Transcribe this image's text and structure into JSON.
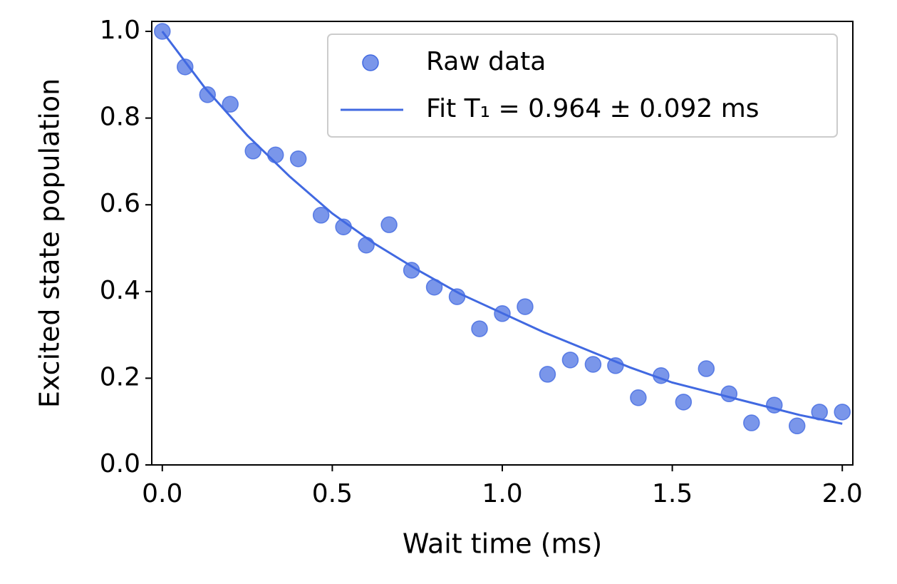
{
  "chart_data": {
    "type": "scatter",
    "xlabel": "Wait time (ms)",
    "ylabel": "Excited state population",
    "xlim": [
      -0.031,
      2.031
    ],
    "ylim": [
      0,
      1.023
    ],
    "xticks": [
      {
        "value": 0,
        "label": "0.0"
      },
      {
        "value": 0.5,
        "label": "0.5"
      },
      {
        "value": 1,
        "label": "1.0"
      },
      {
        "value": 1.5,
        "label": "1.5"
      },
      {
        "value": 2,
        "label": "2.0"
      }
    ],
    "yticks": [
      {
        "value": 0,
        "label": "0.0"
      },
      {
        "value": 0.2,
        "label": "0.2"
      },
      {
        "value": 0.4,
        "label": "0.4"
      },
      {
        "value": 0.6,
        "label": "0.6"
      },
      {
        "value": 0.8,
        "label": "0.8"
      },
      {
        "value": 1,
        "label": "1.0"
      }
    ],
    "legend": "upper right",
    "series": [
      {
        "name": "Raw data",
        "type": "scatter",
        "color": "#4169e1",
        "x": [
          0,
          0.067,
          0.133,
          0.2,
          0.267,
          0.333,
          0.4,
          0.467,
          0.533,
          0.6,
          0.667,
          0.733,
          0.8,
          0.867,
          0.933,
          1,
          1.067,
          1.133,
          1.2,
          1.267,
          1.333,
          1.4,
          1.467,
          1.533,
          1.6,
          1.667,
          1.733,
          1.8,
          1.867,
          1.933,
          2
        ],
        "values": [
          1.0,
          0.918,
          0.854,
          0.832,
          0.724,
          0.715,
          0.706,
          0.576,
          0.549,
          0.507,
          0.554,
          0.449,
          0.41,
          0.388,
          0.314,
          0.349,
          0.365,
          0.209,
          0.242,
          0.232,
          0.229,
          0.155,
          0.206,
          0.145,
          0.222,
          0.164,
          0.097,
          0.138,
          0.09,
          0.122,
          0.122
        ]
      },
      {
        "name": "Fit T₁ = 0.964 ± 0.092 ms",
        "type": "line",
        "color": "#4169e1",
        "x": [
          0,
          0.125,
          0.25,
          0.375,
          0.5,
          0.625,
          0.75,
          0.875,
          1,
          1.125,
          1.25,
          1.375,
          1.5,
          1.625,
          1.75,
          1.875,
          2
        ],
        "values": [
          1.0,
          0.87,
          0.76,
          0.665,
          0.58,
          0.51,
          0.45,
          0.395,
          0.35,
          0.305,
          0.265,
          0.225,
          0.19,
          0.165,
          0.14,
          0.115,
          0.095
        ]
      }
    ]
  }
}
